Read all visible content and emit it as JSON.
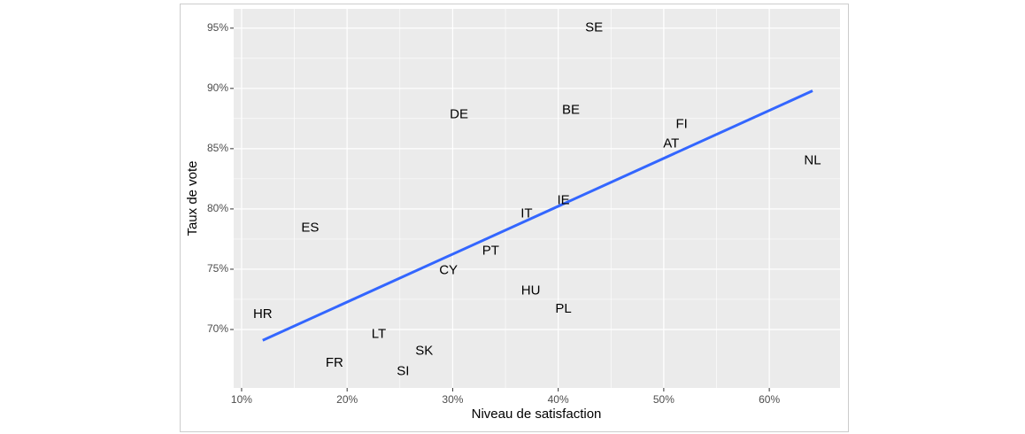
{
  "chart_data": {
    "type": "scatter",
    "x_label": "Niveau de satisfaction",
    "y_label": "Taux de vote",
    "labels": [
      "SE",
      "DE",
      "BE",
      "FI",
      "AT",
      "NL",
      "IE",
      "IT",
      "ES",
      "PT",
      "CY",
      "HU",
      "PL",
      "HR",
      "LT",
      "SK",
      "FR",
      "SI"
    ],
    "x": [
      43.4,
      30.6,
      41.2,
      51.7,
      50.7,
      64.1,
      40.5,
      37.0,
      16.5,
      33.6,
      29.6,
      37.4,
      40.5,
      12.0,
      23.0,
      27.3,
      18.8,
      25.3
    ],
    "values": [
      95.0,
      87.8,
      88.2,
      87.0,
      85.4,
      84.0,
      80.7,
      79.6,
      78.4,
      76.5,
      74.9,
      73.2,
      71.7,
      71.25,
      69.6,
      68.2,
      67.2,
      66.5
    ],
    "trend": {
      "x": [
        12.0,
        64.1
      ],
      "values": [
        69.1,
        89.8
      ],
      "color": "#3366ff"
    },
    "xlim": [
      9.25,
      66.7
    ],
    "ylim": [
      65.15,
      96.6
    ],
    "xticks": [
      {
        "value": 10,
        "label": "10%"
      },
      {
        "value": 20,
        "label": "20%"
      },
      {
        "value": 30,
        "label": "30%"
      },
      {
        "value": 40,
        "label": "40%"
      },
      {
        "value": 50,
        "label": "50%"
      },
      {
        "value": 60,
        "label": "60%"
      }
    ],
    "yticks": [
      {
        "value": 70,
        "label": "70%"
      },
      {
        "value": 75,
        "label": "75%"
      },
      {
        "value": 80,
        "label": "80%"
      },
      {
        "value": 85,
        "label": "85%"
      },
      {
        "value": 90,
        "label": "90%"
      },
      {
        "value": 95,
        "label": "95%"
      }
    ],
    "grid": true
  }
}
